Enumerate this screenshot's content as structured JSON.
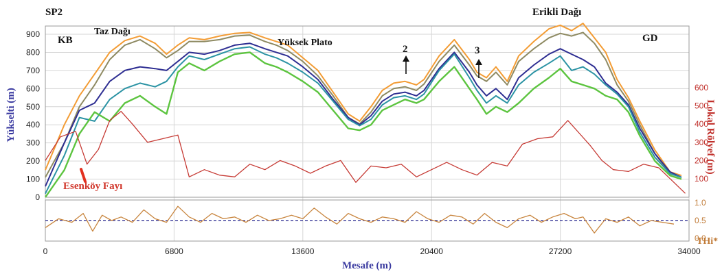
{
  "colors": {
    "elev_axis": "#3a3aa0",
    "relief_axis": "#c0302b",
    "thi_axis": "#c07a36",
    "grid": "#d6d6d6",
    "fault": "#e2301f",
    "median": "#1f1f8a"
  },
  "labels": {
    "sp2": "SP2",
    "kb": "KB",
    "gd": "GD",
    "taz_dagi": "Taz Dağı",
    "yuksek_plato": "Yüksek Plato",
    "erikli_dagi": "Erikli Dağı",
    "esenkoy_fayi": "Esenköy Fayı",
    "arrow_2": "2",
    "arrow_3": "3"
  },
  "chart_data": [
    {
      "type": "line",
      "xlabel": "Mesafe (m)",
      "ylabel": "Yükselti (m)",
      "y2label": "Lokal Rölyef (m)",
      "xlim": [
        0,
        34000
      ],
      "ylim": [
        0,
        950
      ],
      "y2lim": [
        0,
        700
      ],
      "x_ticks": [
        "0",
        "6800",
        "13600",
        "20400",
        "27200",
        "34000"
      ],
      "y_ticks": [
        "0",
        "100",
        "200",
        "300",
        "400",
        "500",
        "600",
        "700",
        "800",
        "900"
      ],
      "y2_ticks": [
        "100",
        "200",
        "300",
        "400",
        "500",
        "600"
      ],
      "grid": true,
      "legend": "none",
      "series": [
        {
          "color": "#f39c34",
          "axis": "left",
          "x": [
            0,
            1000,
            1800,
            2600,
            3400,
            4200,
            5000,
            5800,
            6400,
            7000,
            7600,
            8400,
            9200,
            10000,
            10800,
            11600,
            12200,
            12800,
            13600,
            14400,
            15200,
            16000,
            16600,
            17200,
            17800,
            18400,
            19000,
            19600,
            20000,
            20800,
            21600,
            22400,
            22800,
            23300,
            23800,
            24400,
            25000,
            25800,
            26600,
            27200,
            27800,
            28400,
            29000,
            29600,
            30200,
            30800,
            31400,
            32200,
            33000,
            33600
          ],
          "y": [
            150,
            400,
            560,
            680,
            800,
            865,
            890,
            850,
            790,
            840,
            880,
            870,
            890,
            905,
            910,
            880,
            860,
            840,
            770,
            700,
            580,
            460,
            420,
            500,
            590,
            630,
            640,
            620,
            650,
            780,
            870,
            760,
            690,
            660,
            720,
            640,
            780,
            860,
            930,
            950,
            920,
            960,
            880,
            800,
            650,
            550,
            420,
            260,
            140,
            120
          ]
        },
        {
          "color": "#8e8a62",
          "axis": "left",
          "x": [
            0,
            1000,
            1800,
            2600,
            3400,
            4200,
            5000,
            5800,
            6400,
            7000,
            7600,
            8400,
            9200,
            10000,
            10800,
            11600,
            12200,
            12800,
            13600,
            14400,
            15200,
            16000,
            16600,
            17200,
            17800,
            18400,
            19000,
            19600,
            20000,
            20800,
            21600,
            22400,
            22800,
            23300,
            23800,
            24400,
            25000,
            25800,
            26600,
            27200,
            27800,
            28400,
            29000,
            29600,
            30200,
            30800,
            31400,
            32200,
            33000,
            33600
          ],
          "y": [
            110,
            300,
            500,
            620,
            760,
            840,
            870,
            820,
            770,
            810,
            860,
            860,
            870,
            890,
            895,
            860,
            840,
            810,
            750,
            670,
            560,
            440,
            405,
            470,
            560,
            600,
            610,
            590,
            625,
            750,
            840,
            730,
            670,
            640,
            690,
            620,
            750,
            820,
            880,
            905,
            890,
            910,
            850,
            760,
            620,
            530,
            400,
            240,
            130,
            110
          ]
        },
        {
          "color": "#2e2e92",
          "axis": "left",
          "x": [
            0,
            1000,
            1800,
            2600,
            3400,
            4200,
            5000,
            5800,
            6400,
            7000,
            7600,
            8400,
            9200,
            10000,
            10800,
            11600,
            12200,
            12800,
            13600,
            14400,
            15200,
            16000,
            16600,
            17200,
            17800,
            18400,
            19000,
            19600,
            20000,
            20800,
            21600,
            22400,
            22800,
            23300,
            23800,
            24400,
            25000,
            25800,
            26600,
            27200,
            27800,
            28400,
            29000,
            29600,
            30200,
            30800,
            31400,
            32200,
            33000,
            33600
          ],
          "y": [
            60,
            300,
            480,
            520,
            640,
            700,
            720,
            710,
            700,
            750,
            800,
            790,
            810,
            840,
            850,
            820,
            800,
            780,
            720,
            650,
            540,
            440,
            400,
            450,
            530,
            570,
            580,
            560,
            590,
            710,
            800,
            690,
            620,
            560,
            600,
            540,
            660,
            730,
            790,
            820,
            790,
            760,
            720,
            630,
            580,
            510,
            380,
            240,
            140,
            110
          ]
        },
        {
          "color": "#2b93a4",
          "axis": "left",
          "x": [
            0,
            1000,
            1800,
            2600,
            3400,
            4200,
            5000,
            5800,
            6400,
            7000,
            7600,
            8400,
            9200,
            10000,
            10800,
            11600,
            12200,
            12800,
            13600,
            14400,
            15200,
            16000,
            16600,
            17200,
            17800,
            18400,
            19000,
            19600,
            20000,
            20800,
            21600,
            22400,
            22800,
            23300,
            23800,
            24400,
            25000,
            25800,
            26600,
            27200,
            27800,
            28400,
            29000,
            29600,
            30200,
            30800,
            31400,
            32200,
            33000,
            33600
          ],
          "y": [
            20,
            230,
            440,
            420,
            540,
            600,
            630,
            610,
            640,
            720,
            780,
            760,
            790,
            820,
            830,
            790,
            770,
            740,
            690,
            630,
            530,
            430,
            395,
            430,
            510,
            550,
            560,
            540,
            570,
            700,
            790,
            660,
            590,
            520,
            560,
            520,
            620,
            690,
            740,
            780,
            700,
            720,
            680,
            620,
            570,
            500,
            360,
            220,
            130,
            110
          ]
        },
        {
          "color": "#5cc43f",
          "axis": "left",
          "x": [
            0,
            1000,
            1800,
            2600,
            3400,
            4200,
            5000,
            5800,
            6400,
            7000,
            7600,
            8400,
            9200,
            10000,
            10800,
            11600,
            12200,
            12800,
            13600,
            14400,
            15200,
            16000,
            16600,
            17200,
            17800,
            18400,
            19000,
            19600,
            20000,
            20800,
            21600,
            22400,
            22800,
            23300,
            23800,
            24400,
            25000,
            25800,
            26600,
            27200,
            27800,
            28400,
            29000,
            29600,
            30200,
            30800,
            31400,
            32200,
            33000,
            33600
          ],
          "y": [
            0,
            150,
            350,
            470,
            420,
            520,
            560,
            500,
            460,
            690,
            740,
            700,
            750,
            790,
            800,
            740,
            720,
            690,
            640,
            580,
            480,
            380,
            370,
            400,
            480,
            510,
            540,
            520,
            540,
            640,
            720,
            600,
            540,
            460,
            500,
            470,
            520,
            600,
            660,
            710,
            640,
            620,
            600,
            560,
            540,
            470,
            340,
            200,
            120,
            100
          ]
        },
        {
          "color": "#c63a34",
          "axis": "right",
          "x": [
            0,
            800,
            1600,
            2200,
            2800,
            3400,
            4000,
            4600,
            5400,
            6200,
            7000,
            7600,
            8400,
            9200,
            10000,
            10800,
            11600,
            12400,
            13200,
            14000,
            14800,
            15600,
            16400,
            17200,
            18000,
            18800,
            19600,
            20400,
            21200,
            22000,
            22800,
            23600,
            24400,
            25200,
            26000,
            26800,
            27600,
            28200,
            28800,
            29400,
            30000,
            30800,
            31600,
            32400,
            33200,
            33800
          ],
          "y": [
            200,
            330,
            360,
            180,
            260,
            420,
            470,
            400,
            300,
            320,
            340,
            110,
            150,
            120,
            110,
            180,
            150,
            200,
            170,
            130,
            170,
            200,
            80,
            170,
            160,
            180,
            110,
            150,
            190,
            150,
            120,
            190,
            170,
            290,
            320,
            330,
            420,
            350,
            280,
            200,
            150,
            140,
            180,
            160,
            80,
            20
          ]
        },
        {
          "color": "#c8853e",
          "axis": "thi",
          "name": "THi*",
          "ylim": [
            0,
            1
          ],
          "y_ticks": [
            "0.0",
            "0.5",
            "1.0"
          ],
          "x": [
            0,
            700,
            1400,
            2000,
            2500,
            3000,
            3500,
            4000,
            4600,
            5200,
            5800,
            6400,
            7000,
            7600,
            8200,
            8800,
            9400,
            10000,
            10600,
            11200,
            11800,
            12400,
            13000,
            13600,
            14200,
            14800,
            15400,
            16000,
            16600,
            17200,
            17800,
            18400,
            19000,
            19600,
            20200,
            20800,
            21400,
            22000,
            22600,
            23200,
            23800,
            24400,
            25000,
            25600,
            26200,
            26800,
            27400,
            28000,
            28400,
            29000,
            29600,
            30200,
            30800,
            31400,
            32000,
            32600,
            33200
          ],
          "y": [
            0.3,
            0.55,
            0.45,
            0.7,
            0.2,
            0.65,
            0.5,
            0.6,
            0.45,
            0.8,
            0.55,
            0.45,
            0.9,
            0.6,
            0.45,
            0.7,
            0.55,
            0.6,
            0.45,
            0.65,
            0.5,
            0.55,
            0.65,
            0.55,
            0.85,
            0.6,
            0.4,
            0.7,
            0.55,
            0.45,
            0.6,
            0.55,
            0.45,
            0.75,
            0.55,
            0.45,
            0.65,
            0.6,
            0.4,
            0.7,
            0.45,
            0.3,
            0.55,
            0.65,
            0.45,
            0.6,
            0.7,
            0.55,
            0.6,
            0.15,
            0.55,
            0.45,
            0.6,
            0.35,
            0.5,
            0.45,
            0.4
          ]
        }
      ],
      "reference_line": {
        "axis": "thi",
        "y": 0.5,
        "style": "dashed"
      }
    }
  ]
}
